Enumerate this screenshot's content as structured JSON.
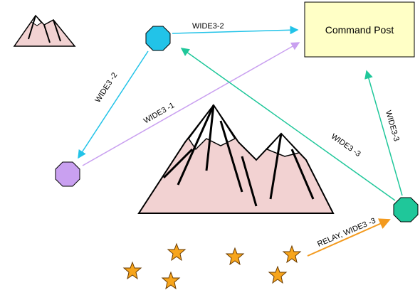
{
  "command_post": {
    "label": "Command Post"
  },
  "links": [
    {
      "label": "WIDE3-2"
    },
    {
      "label": "WIDE3 -2"
    },
    {
      "label": "WIDE3 -1"
    },
    {
      "label": "WIDE3 -3"
    },
    {
      "label": "WIDE3-3"
    },
    {
      "label": "RELAY, WIDE3 -3"
    }
  ]
}
